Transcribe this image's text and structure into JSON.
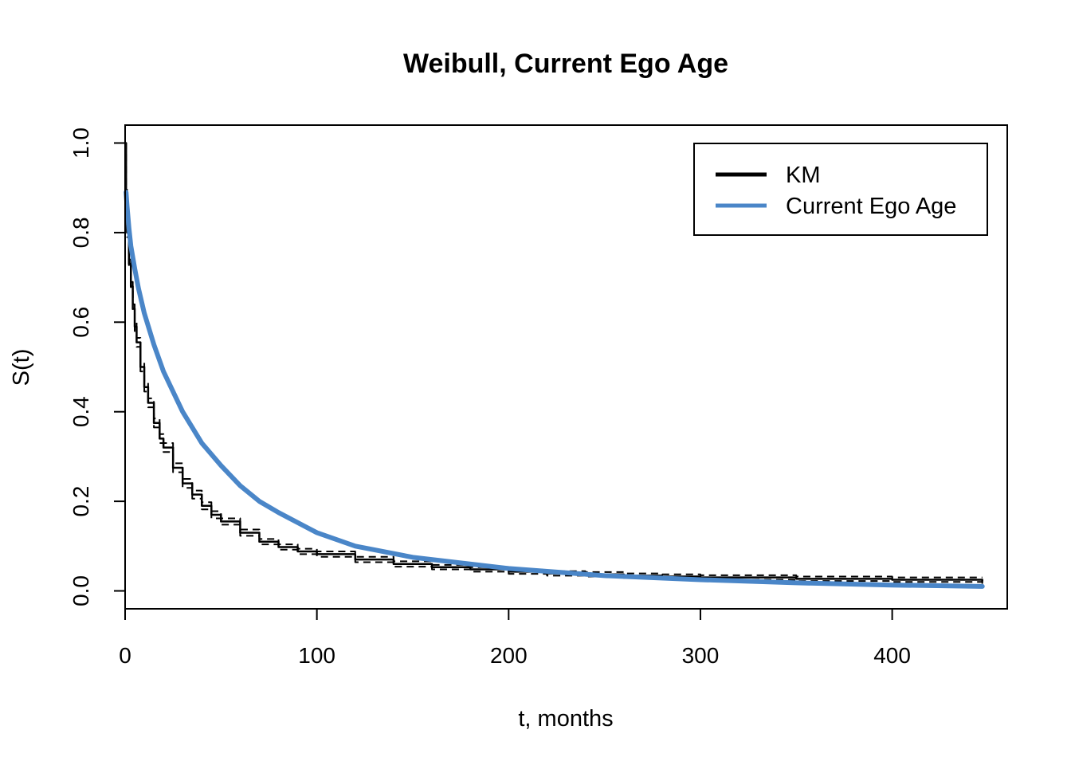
{
  "chart_data": {
    "type": "line",
    "title": "Weibull, Current Ego Age",
    "xlabel": "t, months",
    "ylabel": "S(t)",
    "xlim": [
      0,
      460
    ],
    "ylim": [
      -0.04,
      1.04
    ],
    "xticks": [
      0,
      100,
      200,
      300,
      400
    ],
    "xtick_labels": [
      "0",
      "100",
      "200",
      "300",
      "400"
    ],
    "yticks": [
      0.0,
      0.2,
      0.4,
      0.6,
      0.8,
      1.0
    ],
    "ytick_labels": [
      "0.0",
      "0.2",
      "0.4",
      "0.6",
      "0.8",
      "1.0"
    ],
    "grid": false,
    "legend_position": "top-right",
    "legend": [
      {
        "label": "KM",
        "color": "#000000"
      },
      {
        "label": "Current Ego Age",
        "color": "#4a86c8"
      }
    ],
    "series": [
      {
        "name": "KM",
        "style": "step",
        "color": "#000000",
        "x": [
          0,
          0.5,
          1,
          2,
          3,
          4,
          5,
          6,
          8,
          10,
          12,
          15,
          18,
          20,
          25,
          30,
          35,
          40,
          45,
          50,
          60,
          70,
          80,
          90,
          100,
          120,
          140,
          160,
          180,
          200,
          220,
          240,
          260,
          280,
          300,
          350,
          400,
          447
        ],
        "y": [
          1.0,
          0.89,
          0.8,
          0.73,
          0.68,
          0.63,
          0.59,
          0.555,
          0.5,
          0.455,
          0.42,
          0.375,
          0.34,
          0.32,
          0.275,
          0.24,
          0.215,
          0.19,
          0.17,
          0.155,
          0.13,
          0.11,
          0.098,
          0.088,
          0.082,
          0.07,
          0.06,
          0.053,
          0.048,
          0.043,
          0.039,
          0.037,
          0.034,
          0.032,
          0.03,
          0.027,
          0.025,
          0.022
        ]
      },
      {
        "name": "KM upper",
        "style": "step-dashed",
        "color": "#000000",
        "x": [
          0,
          0.5,
          1,
          2,
          3,
          4,
          5,
          6,
          8,
          10,
          12,
          15,
          18,
          20,
          25,
          30,
          35,
          40,
          45,
          50,
          60,
          70,
          80,
          90,
          100,
          120,
          140,
          160,
          180,
          200,
          220,
          240,
          260,
          280,
          300,
          350,
          400,
          447
        ],
        "y": [
          1.0,
          0.9,
          0.81,
          0.74,
          0.69,
          0.64,
          0.6,
          0.565,
          0.51,
          0.465,
          0.43,
          0.385,
          0.35,
          0.33,
          0.285,
          0.25,
          0.224,
          0.198,
          0.178,
          0.162,
          0.137,
          0.116,
          0.104,
          0.094,
          0.088,
          0.076,
          0.066,
          0.058,
          0.053,
          0.048,
          0.044,
          0.042,
          0.039,
          0.037,
          0.035,
          0.032,
          0.03,
          0.03
        ]
      },
      {
        "name": "KM lower",
        "style": "step-dashed",
        "color": "#000000",
        "x": [
          0,
          0.5,
          1,
          2,
          3,
          4,
          5,
          6,
          8,
          10,
          12,
          15,
          18,
          20,
          25,
          30,
          35,
          40,
          45,
          50,
          60,
          70,
          80,
          90,
          100,
          120,
          140,
          160,
          180,
          200,
          220,
          240,
          260,
          280,
          300,
          350,
          400,
          447
        ],
        "y": [
          1.0,
          0.88,
          0.79,
          0.72,
          0.67,
          0.62,
          0.58,
          0.545,
          0.49,
          0.445,
          0.41,
          0.365,
          0.33,
          0.31,
          0.265,
          0.23,
          0.206,
          0.182,
          0.162,
          0.148,
          0.123,
          0.104,
          0.092,
          0.082,
          0.076,
          0.064,
          0.054,
          0.048,
          0.043,
          0.038,
          0.034,
          0.032,
          0.029,
          0.027,
          0.025,
          0.022,
          0.02,
          0.016
        ]
      },
      {
        "name": "Current Ego Age",
        "style": "line",
        "color": "#4a86c8",
        "x": [
          0.5,
          1,
          2,
          3,
          5,
          7,
          10,
          15,
          20,
          25,
          30,
          40,
          50,
          60,
          70,
          80,
          100,
          120,
          150,
          200,
          250,
          300,
          350,
          400,
          447
        ],
        "y": [
          0.89,
          0.86,
          0.81,
          0.77,
          0.72,
          0.675,
          0.62,
          0.55,
          0.49,
          0.445,
          0.4,
          0.33,
          0.28,
          0.235,
          0.2,
          0.175,
          0.13,
          0.1,
          0.075,
          0.05,
          0.034,
          0.025,
          0.018,
          0.013,
          0.01
        ]
      }
    ]
  }
}
